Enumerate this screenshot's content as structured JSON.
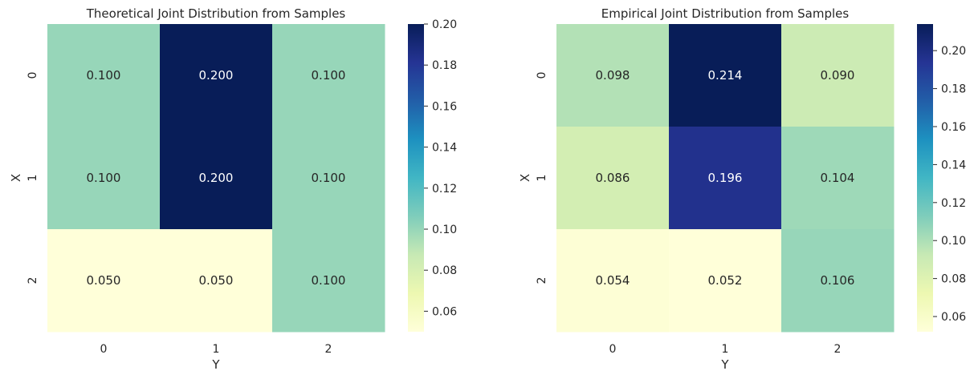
{
  "chart_data": [
    {
      "type": "heatmap",
      "title": "Theoretical Joint Distribution from Samples",
      "xlabel": "Y",
      "ylabel": "X",
      "x_categories": [
        "0",
        "1",
        "2"
      ],
      "y_categories": [
        "0",
        "1",
        "2"
      ],
      "values": [
        [
          0.1,
          0.2,
          0.1
        ],
        [
          0.1,
          0.2,
          0.1
        ],
        [
          0.05,
          0.05,
          0.1
        ]
      ],
      "annotations": [
        [
          "0.100",
          "0.200",
          "0.100"
        ],
        [
          "0.100",
          "0.200",
          "0.100"
        ],
        [
          "0.050",
          "0.050",
          "0.100"
        ]
      ],
      "colormap": "YlGnBu",
      "vmin": 0.05,
      "vmax": 0.2,
      "colorbar_ticks": [
        "0.06",
        "0.08",
        "0.10",
        "0.12",
        "0.14",
        "0.16",
        "0.18",
        "0.20"
      ]
    },
    {
      "type": "heatmap",
      "title": "Empirical Joint Distribution from Samples",
      "xlabel": "Y",
      "ylabel": "X",
      "x_categories": [
        "0",
        "1",
        "2"
      ],
      "y_categories": [
        "0",
        "1",
        "2"
      ],
      "values": [
        [
          0.098,
          0.214,
          0.09
        ],
        [
          0.086,
          0.196,
          0.104
        ],
        [
          0.054,
          0.052,
          0.106
        ]
      ],
      "annotations": [
        [
          "0.098",
          "0.214",
          "0.090"
        ],
        [
          "0.086",
          "0.196",
          "0.104"
        ],
        [
          "0.054",
          "0.052",
          "0.106"
        ]
      ],
      "colormap": "YlGnBu",
      "vmin": 0.052,
      "vmax": 0.214,
      "colorbar_ticks": [
        "0.06",
        "0.08",
        "0.10",
        "0.12",
        "0.14",
        "0.16",
        "0.18",
        "0.20"
      ]
    }
  ],
  "colors": {
    "text_dark": "#262626",
    "text_light": "#ffffff",
    "colormap_stops": [
      "#ffffd9",
      "#edf8b1",
      "#c7e9b4",
      "#7fcdbb",
      "#41b6c4",
      "#1d91c0",
      "#225ea8",
      "#253494",
      "#081d58"
    ]
  }
}
